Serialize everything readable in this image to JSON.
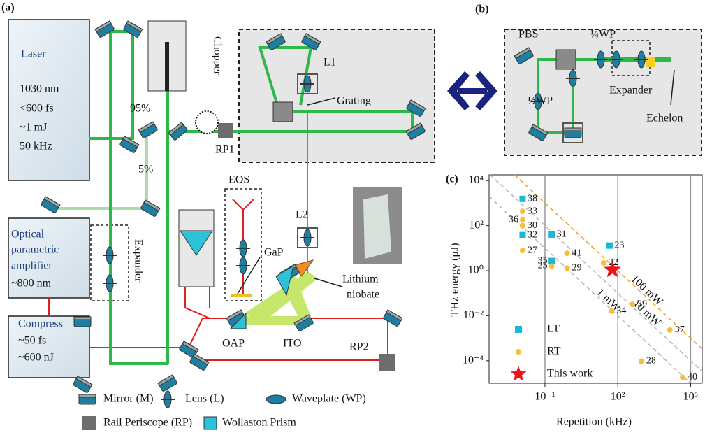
{
  "diagram": {
    "panel_a": "(a)",
    "panel_b": "(b)",
    "panel_c": "(c)",
    "laser": {
      "name": "Laser",
      "specs": [
        "1030 nm",
        "<600 fs",
        "~1 mJ",
        "50 kHz"
      ]
    },
    "opa": [
      "Optical",
      "parametric",
      "amplifier",
      "~800 nm"
    ],
    "compress": [
      "Compress",
      "~50 fs",
      "~600 nJ"
    ],
    "labels": {
      "chopper": "Chopper",
      "split_95": "95%",
      "split_5": "5%",
      "rp1": "RP1",
      "rp2": "RP2",
      "l1": "L1",
      "l2": "L2",
      "grating": "Grating",
      "eos": "EOS",
      "gap": "GaP",
      "expander_a": "Expander",
      "lithium_niobate": [
        "Lithium",
        "niobate"
      ],
      "oap": "OAP",
      "ito": "ITO",
      "pbs": "PBS",
      "quarter_wp": "¼WP",
      "half_wp": "½WP",
      "expander_b": "Expander",
      "echelon": "Echelon"
    },
    "legend": [
      "Mirror (M)",
      "Lens (L)",
      "Waveplate (WP)",
      "Rail Periscope (RP)",
      "Wollaston Prism"
    ]
  },
  "chart_data": {
    "type": "scatter",
    "x_label": "Repetition (kHz)",
    "y_label": "THz energy (μJ)",
    "x_log": true,
    "y_log": true,
    "xlim": [
      0.0005,
      300000
    ],
    "ylim": [
      1e-05,
      18000
    ],
    "xticks": [
      {
        "value": 0.1,
        "label": "10⁻¹"
      },
      {
        "value": 100,
        "label": "10²"
      },
      {
        "value": 100000,
        "label": "10⁵"
      }
    ],
    "yticks": [
      {
        "value": 0.0001,
        "label": "10⁻⁴"
      },
      {
        "value": 0.01,
        "label": "10⁻²"
      },
      {
        "value": 1,
        "label": "10⁰"
      },
      {
        "value": 100,
        "label": "10²"
      },
      {
        "value": 10000,
        "label": "10⁴"
      }
    ],
    "grid": "x",
    "legend": "lower left",
    "reference_lines": [
      {
        "label": "100 mW",
        "power": 100,
        "color": "#f0a020"
      },
      {
        "label": "10 mW",
        "power": 10,
        "color": "#b5b5b5"
      },
      {
        "label": "1 mW",
        "power": 1,
        "color": "#b5b5b5"
      }
    ],
    "series": [
      {
        "name": "LT",
        "color": "#1ab8d6",
        "marker": "square",
        "labels": [
          "38",
          "32",
          "31",
          "23",
          "35"
        ],
        "x": [
          0.012,
          0.012,
          0.19,
          46,
          0.19
        ],
        "values": [
          1550,
          38,
          40,
          13,
          2.7
        ]
      },
      {
        "name": "RT",
        "color": "#f5be3c",
        "marker": "circle",
        "labels": [
          "33",
          "36",
          "30",
          "27",
          "41",
          "25",
          "29",
          "22",
          "39",
          "34",
          "37",
          "28",
          "40"
        ],
        "x": [
          0.012,
          0.012,
          0.012,
          0.012,
          0.81,
          0.19,
          0.81,
          26,
          400,
          56,
          14000,
          930,
          47000
        ],
        "values": [
          430,
          180,
          100,
          7.9,
          5.9,
          1.6,
          1.3,
          2.2,
          0.032,
          0.016,
          0.0023,
          9.5e-05,
          1.8e-05
        ]
      },
      {
        "name": "This work",
        "color": "#e8141c",
        "marker": "star",
        "x": [
          60
        ],
        "values": [
          1.1
        ]
      }
    ]
  }
}
